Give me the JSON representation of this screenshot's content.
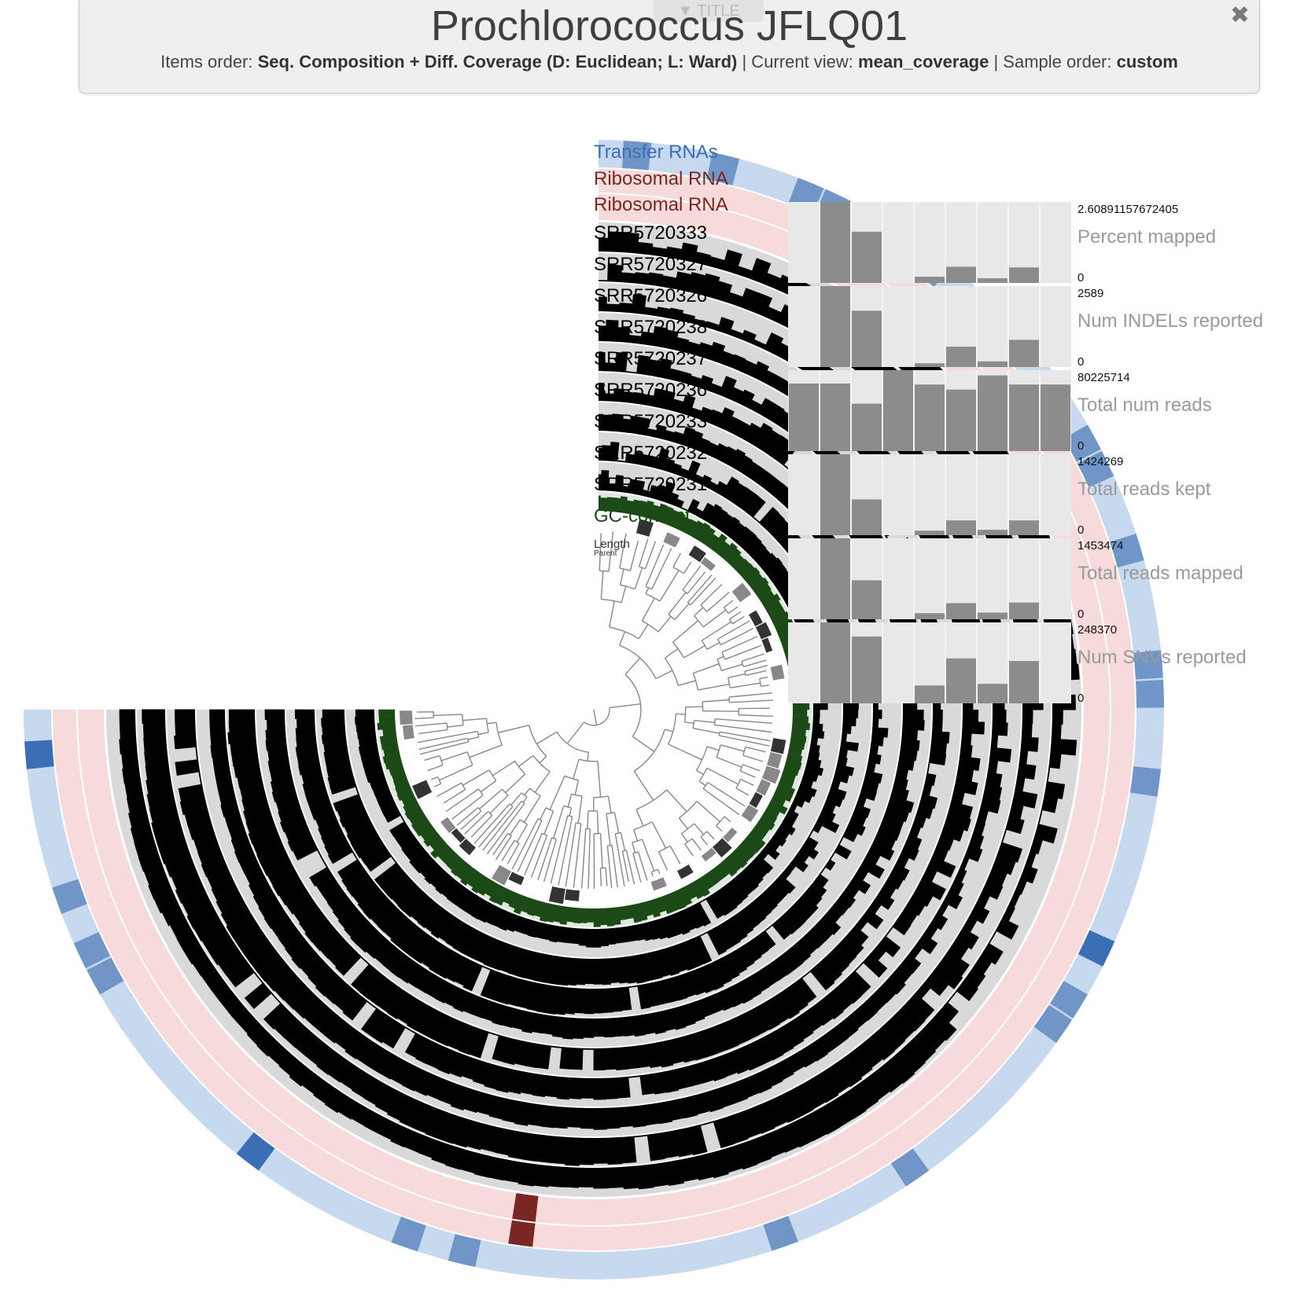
{
  "header": {
    "tab_label": "▼ TITLE",
    "title": "Prochlorococcus JFLQ01",
    "items_order_label": "Items order:",
    "items_order_value": "Seq. Composition + Diff. Coverage (D: Euclidean; L: Ward)",
    "current_view_label": "| Current view:",
    "current_view_value": "mean_coverage",
    "sample_order_label": "| Sample order:",
    "sample_order_value": "custom",
    "close_glyph": "✖"
  },
  "layers": [
    {
      "name": "Transfer RNAs",
      "kind": "trna",
      "color": "#3a6fb5"
    },
    {
      "name": "Ribosomal RNA",
      "kind": "rrna",
      "color": "#7a2622"
    },
    {
      "name": "Ribosomal RNA",
      "kind": "rrna",
      "color": "#7a2622"
    },
    {
      "name": "SRR5720333",
      "kind": "sample",
      "color": "#000000"
    },
    {
      "name": "SRR5720327",
      "kind": "sample",
      "color": "#000000"
    },
    {
      "name": "SRR5720326",
      "kind": "sample",
      "color": "#000000"
    },
    {
      "name": "SRR5720238",
      "kind": "sample",
      "color": "#000000"
    },
    {
      "name": "SRR5720237",
      "kind": "sample",
      "color": "#000000"
    },
    {
      "name": "SRR5720236",
      "kind": "sample",
      "color": "#000000"
    },
    {
      "name": "SRR5720233",
      "kind": "sample",
      "color": "#000000"
    },
    {
      "name": "SRR5720232",
      "kind": "sample",
      "color": "#000000"
    },
    {
      "name": "SRR5720231",
      "kind": "sample",
      "color": "#000000"
    },
    {
      "name": "GC-content",
      "kind": "gc",
      "color": "#1b4a17"
    },
    {
      "name": "Length",
      "kind": "length",
      "color": "#333333"
    },
    {
      "name": "Parent",
      "kind": "parent",
      "color": "#333333"
    }
  ],
  "colors": {
    "trna_background": "#c6d9ef",
    "trna_mid": "#7096c8",
    "trna_dark": "#3a6fb5",
    "rrna_background": "#f7dada",
    "rrna_hit": "#7a2622",
    "sample_background": "#d9d9d9",
    "sample_bar": "#000000",
    "gc_bar": "#1b4a17",
    "gc_background": "#dfe8dc",
    "tree_line": "#888888",
    "bar_panel_background": "#e8e8e8",
    "bar_fill": "#8c8c8c",
    "panel_label": "#9a9a9a"
  },
  "bar_panels": [
    {
      "name": "Percent mapped",
      "max": "2.60891157672405",
      "min": "0",
      "values": [
        0,
        2.6089,
        1.65,
        0,
        0.2,
        0.52,
        0.15,
        0.5,
        0
      ]
    },
    {
      "name": "Num INDELs reported",
      "max": "2589",
      "min": "0",
      "values": [
        0,
        2589,
        1800,
        0,
        120,
        650,
        180,
        870,
        0
      ]
    },
    {
      "name": "Total num reads",
      "max": "80225714",
      "min": "0",
      "values": [
        67000000,
        67000000,
        47000000,
        80225714,
        66000000,
        61000000,
        75000000,
        66000000,
        66000000
      ]
    },
    {
      "name": "Total reads kept",
      "max": "1424269",
      "min": "0",
      "values": [
        0,
        1424269,
        630000,
        0,
        80000,
        260000,
        95000,
        260000,
        0
      ]
    },
    {
      "name": "Total reads mapped",
      "max": "1453474",
      "min": "0",
      "values": [
        0,
        1453474,
        700000,
        0,
        110000,
        290000,
        120000,
        300000,
        0
      ]
    },
    {
      "name": "Num SNVs reported",
      "max": "248370",
      "min": "0",
      "values": [
        0,
        248370,
        205000,
        0,
        55000,
        138000,
        60000,
        130000,
        0
      ]
    }
  ]
}
